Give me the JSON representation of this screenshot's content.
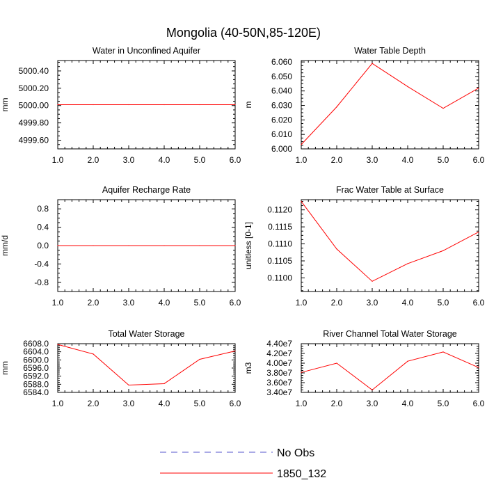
{
  "title": "Mongolia (40-50N,85-120E)",
  "chart_data": [
    {
      "type": "line",
      "title": "Water in Unconfined Aquifer",
      "ylabel": "mm",
      "x": [
        1,
        2,
        3,
        4,
        5,
        6
      ],
      "xlim": [
        1,
        6
      ],
      "ylim": [
        4999.5,
        5000.52
      ],
      "xticks": [
        "1.0",
        "2.0",
        "3.0",
        "4.0",
        "5.0",
        "6.0"
      ],
      "yticks": [
        {
          "v": 4999.6,
          "label": "4999.60"
        },
        {
          "v": 4999.8,
          "label": "4999.80"
        },
        {
          "v": 5000.0,
          "label": "5000.00"
        },
        {
          "v": 5000.2,
          "label": "5000.20"
        },
        {
          "v": 5000.4,
          "label": "5000.40"
        }
      ],
      "series": [
        {
          "name": "1850_132",
          "color": "#ff0000",
          "values": [
            5000.01,
            5000.01,
            5000.01,
            5000.01,
            5000.01,
            5000.01
          ]
        }
      ]
    },
    {
      "type": "line",
      "title": "Water Table Depth",
      "ylabel": "m",
      "x": [
        1,
        2,
        3,
        4,
        5,
        6
      ],
      "xlim": [
        1,
        6
      ],
      "ylim": [
        6.0,
        6.061
      ],
      "xticks": [
        "1.0",
        "2.0",
        "3.0",
        "4.0",
        "5.0",
        "6.0"
      ],
      "yticks": [
        {
          "v": 6.0,
          "label": "6.000"
        },
        {
          "v": 6.01,
          "label": "6.010"
        },
        {
          "v": 6.02,
          "label": "6.020"
        },
        {
          "v": 6.03,
          "label": "6.030"
        },
        {
          "v": 6.04,
          "label": "6.040"
        },
        {
          "v": 6.05,
          "label": "6.050"
        },
        {
          "v": 6.06,
          "label": "6.060"
        }
      ],
      "series": [
        {
          "name": "1850_132",
          "color": "#ff0000",
          "values": [
            6.003,
            6.029,
            6.059,
            6.043,
            6.028,
            6.042
          ]
        }
      ]
    },
    {
      "type": "line",
      "title": "Aquifer Recharge Rate",
      "ylabel": "mm/d",
      "x": [
        1,
        2,
        3,
        4,
        5,
        6
      ],
      "xlim": [
        1,
        6
      ],
      "ylim": [
        -1.0,
        1.0
      ],
      "xticks": [
        "1.0",
        "2.0",
        "3.0",
        "4.0",
        "5.0",
        "6.0"
      ],
      "yticks": [
        {
          "v": -0.8,
          "label": "-0.8"
        },
        {
          "v": -0.4,
          "label": "-0.4"
        },
        {
          "v": 0.0,
          "label": "0.0"
        },
        {
          "v": 0.4,
          "label": "0.4"
        },
        {
          "v": 0.8,
          "label": "0.8"
        }
      ],
      "series": [
        {
          "name": "1850_132",
          "color": "#ff0000",
          "values": [
            0,
            0,
            0,
            0,
            0,
            0
          ]
        }
      ]
    },
    {
      "type": "line",
      "title": "Frac Water Table at Surface",
      "ylabel": "unitless [0-1]",
      "x": [
        1,
        2,
        3,
        4,
        5,
        6
      ],
      "xlim": [
        1,
        6
      ],
      "ylim": [
        0.1096,
        0.1123
      ],
      "xticks": [
        "1.0",
        "2.0",
        "3.0",
        "4.0",
        "5.0",
        "6.0"
      ],
      "yticks": [
        {
          "v": 0.11,
          "label": "0.1100"
        },
        {
          "v": 0.1105,
          "label": "0.1105"
        },
        {
          "v": 0.111,
          "label": "0.1110"
        },
        {
          "v": 0.1115,
          "label": "0.1115"
        },
        {
          "v": 0.112,
          "label": "0.1120"
        }
      ],
      "series": [
        {
          "name": "1850_132",
          "color": "#ff0000",
          "values": [
            0.11225,
            0.11085,
            0.1099,
            0.11042,
            0.1108,
            0.11135
          ]
        }
      ]
    },
    {
      "type": "line",
      "title": "Total Water Storage",
      "ylabel": "mm",
      "x": [
        1,
        2,
        3,
        4,
        5,
        6
      ],
      "xlim": [
        1,
        6
      ],
      "ylim": [
        6584.0,
        6608.0
      ],
      "xticks": [
        "1.0",
        "2.0",
        "3.0",
        "4.0",
        "5.0",
        "6.0"
      ],
      "yticks": [
        {
          "v": 6584,
          "label": "6584.0"
        },
        {
          "v": 6588,
          "label": "6588.0"
        },
        {
          "v": 6592,
          "label": "6592.0"
        },
        {
          "v": 6596,
          "label": "6596.0"
        },
        {
          "v": 6600,
          "label": "6600.0"
        },
        {
          "v": 6604,
          "label": "6604.0"
        },
        {
          "v": 6608,
          "label": "6608.0"
        }
      ],
      "series": [
        {
          "name": "1850_132",
          "color": "#ff0000",
          "values": [
            6607.6,
            6602.9,
            6587.6,
            6588.3,
            6600.3,
            6604.4
          ]
        }
      ]
    },
    {
      "type": "line",
      "title": "River Channel Total Water Storage",
      "ylabel": "m3",
      "x": [
        1,
        2,
        3,
        4,
        5,
        6
      ],
      "xlim": [
        1,
        6
      ],
      "ylim": [
        34000000,
        44000000
      ],
      "xticks": [
        "1.0",
        "2.0",
        "3.0",
        "4.0",
        "5.0",
        "6.0"
      ],
      "yticks": [
        {
          "v": 34000000,
          "label": "3.40e7"
        },
        {
          "v": 36000000,
          "label": "3.60e7"
        },
        {
          "v": 38000000,
          "label": "3.80e7"
        },
        {
          "v": 40000000,
          "label": "4.00e7"
        },
        {
          "v": 42000000,
          "label": "4.20e7"
        },
        {
          "v": 44000000,
          "label": "4.40e7"
        }
      ],
      "series": [
        {
          "name": "1850_132",
          "color": "#ff0000",
          "values": [
            38100000,
            40000000,
            34500000,
            40400000,
            42300000,
            39100000
          ]
        }
      ]
    }
  ],
  "legend": [
    {
      "label": "No Obs",
      "color": "#5555cc",
      "style": "dashed"
    },
    {
      "label": "1850_132",
      "color": "#ff0000",
      "style": "solid"
    }
  ]
}
